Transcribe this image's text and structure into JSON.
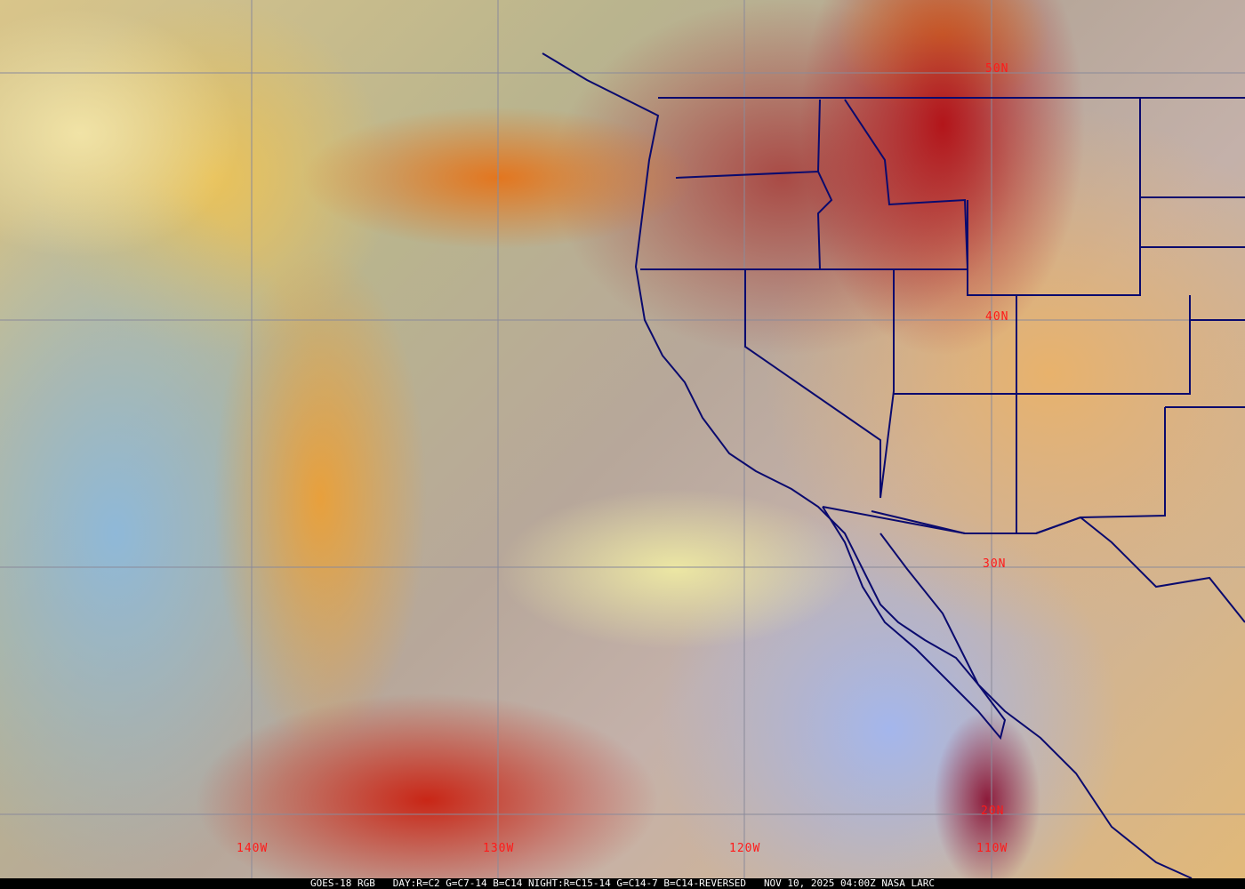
{
  "map": {
    "latitude_labels": [
      "50N",
      "40N",
      "30N",
      "20N"
    ],
    "longitude_labels": [
      "140W",
      "130W",
      "120W",
      "110W"
    ],
    "gridline_color": "#8a8a9a",
    "label_color": "#ff1a1a",
    "border_color": "#0a0a6e"
  },
  "caption": {
    "satellite": "GOES-18 RGB",
    "recipe": "DAY:R=C2 G=C7-14 B=C14 NIGHT:R=C15-14 G=C14-7 B=C14-REVERSED",
    "timestamp": "NOV 10, 2025 04:00Z",
    "source": "NASA LARC"
  }
}
